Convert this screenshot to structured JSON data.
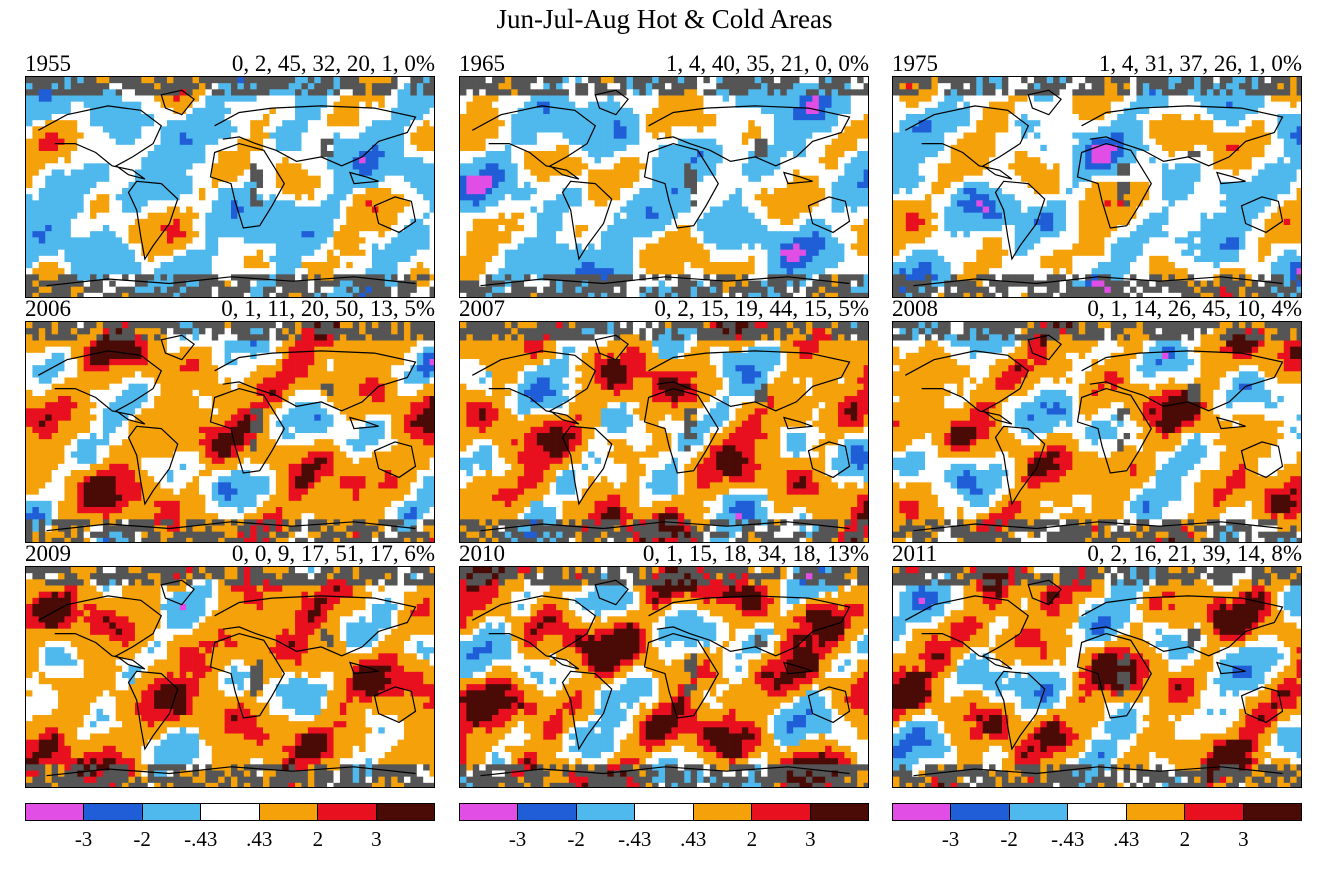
{
  "title": "Jun-Jul-Aug Hot & Cold Areas",
  "panels": [
    {
      "year": "1955",
      "stats": "0, 2, 45, 32, 20, 1, 0%",
      "shares": [
        0,
        2,
        45,
        32,
        20,
        1,
        0
      ]
    },
    {
      "year": "1965",
      "stats": "1, 4, 40, 35, 21, 0, 0%",
      "shares": [
        1,
        4,
        40,
        35,
        21,
        0,
        0
      ]
    },
    {
      "year": "1975",
      "stats": "1, 4, 31, 37, 26, 1, 0%",
      "shares": [
        1,
        4,
        31,
        37,
        26,
        1,
        0
      ]
    },
    {
      "year": "2006",
      "stats": "0, 1, 11, 20, 50, 13, 5%",
      "shares": [
        0,
        1,
        11,
        20,
        50,
        13,
        5
      ]
    },
    {
      "year": "2007",
      "stats": "0, 2, 15, 19, 44, 15, 5%",
      "shares": [
        0,
        2,
        15,
        19,
        44,
        15,
        5
      ]
    },
    {
      "year": "2008",
      "stats": "0, 1, 14, 26, 45, 10, 4%",
      "shares": [
        0,
        1,
        14,
        26,
        45,
        10,
        4
      ]
    },
    {
      "year": "2009",
      "stats": "0, 0, 9, 17, 51, 17, 6%",
      "shares": [
        0,
        0,
        9,
        17,
        51,
        17,
        6
      ]
    },
    {
      "year": "2010",
      "stats": "0, 1, 15, 18, 34, 18, 13%",
      "shares": [
        0,
        1,
        15,
        18,
        34,
        18,
        13
      ]
    },
    {
      "year": "2011",
      "stats": "0, 2, 16, 21, 39, 14, 8%",
      "shares": [
        0,
        2,
        16,
        21,
        39,
        14,
        8
      ]
    }
  ],
  "colorbar": {
    "colors": [
      "#e04ee6",
      "#1f5ed6",
      "#4fb8ec",
      "#ffffff",
      "#f5a10a",
      "#e8101e",
      "#4a0b06"
    ],
    "ticks": [
      "-3",
      "-2",
      "-.43",
      ".43",
      "2",
      "3"
    ]
  },
  "no_data_color": "#555555",
  "coast_color": "#000000"
}
